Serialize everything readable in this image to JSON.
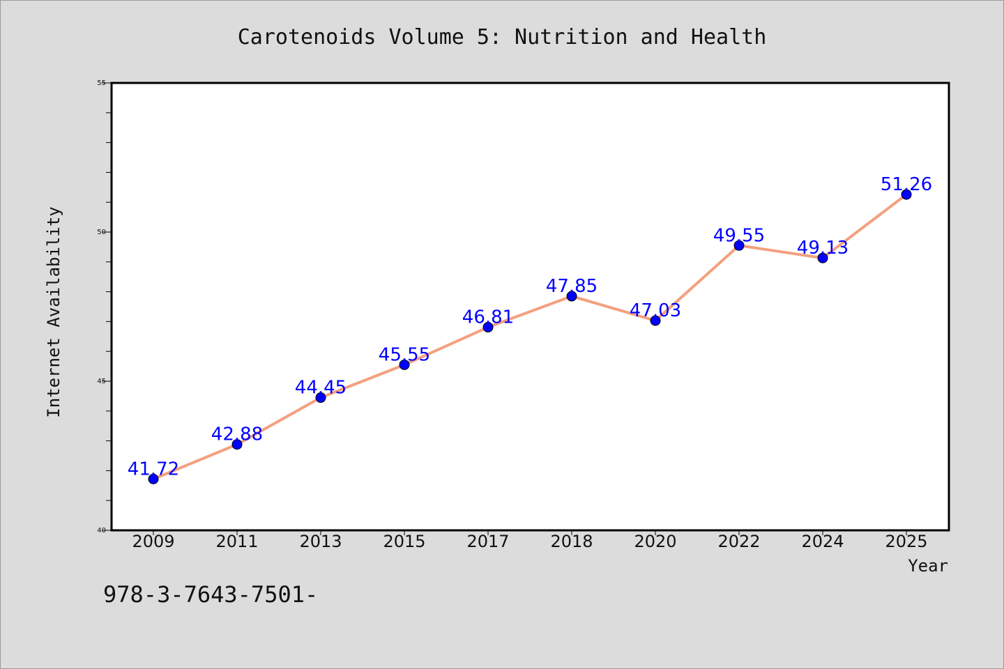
{
  "chart_data": {
    "type": "line",
    "title": "Carotenoids Volume 5: Nutrition and Health",
    "xlabel": "Year",
    "ylabel": "Internet Availability",
    "categories": [
      "2009",
      "2011",
      "2013",
      "2015",
      "2017",
      "2018",
      "2020",
      "2022",
      "2024",
      "2025"
    ],
    "values": [
      41.72,
      42.88,
      44.45,
      45.55,
      46.81,
      47.85,
      47.03,
      49.55,
      49.13,
      51.26
    ],
    "data_labels": [
      "41.72",
      "42.88",
      "44.45",
      "45.55",
      "46.81",
      "47.85",
      "47.03",
      "49.55",
      "49.13",
      "51.26"
    ],
    "ylim": [
      40,
      55
    ],
    "yticks": [
      "40",
      "45",
      "50",
      "55"
    ],
    "grid": false,
    "line_color": "#f4a07f",
    "marker_color": "#0000ff",
    "label_color": "#0000ff"
  },
  "footer": {
    "isbn": "978-3-7643-7501-"
  }
}
